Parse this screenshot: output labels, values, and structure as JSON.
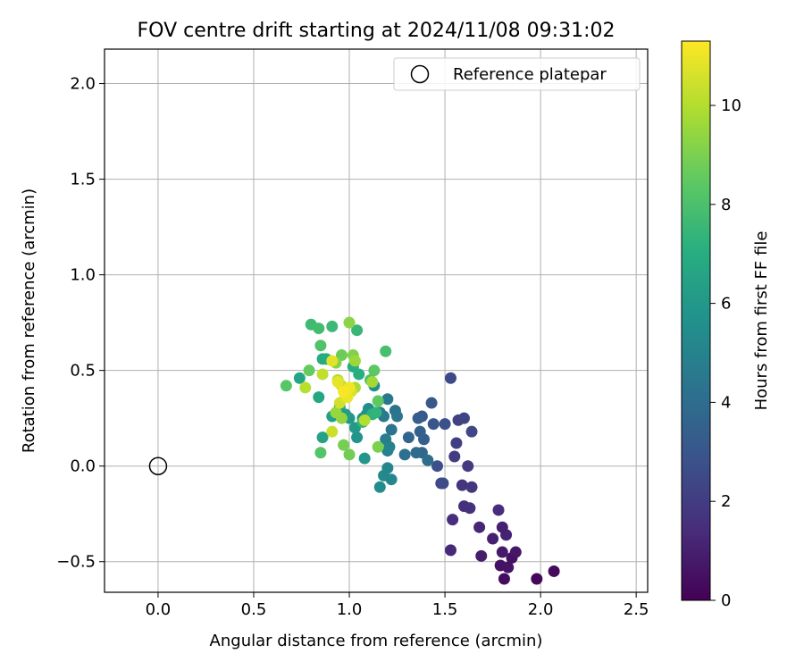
{
  "chart_data": {
    "type": "scatter",
    "title": "FOV centre drift starting at 2024/11/08 09:31:02",
    "xlabel": "Angular distance from reference (arcmin)",
    "ylabel": "Rotation from reference (arcmin)",
    "xlim": [
      -0.28,
      2.56
    ],
    "ylim": [
      -0.66,
      2.18
    ],
    "xticks": [
      0.0,
      0.5,
      1.0,
      1.5,
      2.0,
      2.5
    ],
    "xtick_labels": [
      "0.0",
      "0.5",
      "1.0",
      "1.5",
      "2.0",
      "2.5"
    ],
    "yticks": [
      -0.5,
      0.0,
      0.5,
      1.0,
      1.5,
      2.0
    ],
    "ytick_labels": [
      "−0.5",
      "0.0",
      "0.5",
      "1.0",
      "1.5",
      "2.0"
    ],
    "grid": true,
    "legend": {
      "placement": "top-right",
      "entries": [
        "Reference platepar"
      ]
    },
    "reference": {
      "x": 0.0,
      "y": 0.0,
      "label": "Reference platepar"
    },
    "colorbar": {
      "label": "Hours from first FF file",
      "colormap": "viridis",
      "range": [
        0,
        11.3
      ],
      "ticks": [
        0,
        2,
        4,
        6,
        8,
        10
      ],
      "tick_labels": [
        "0",
        "2",
        "4",
        "6",
        "8",
        "10"
      ]
    },
    "points": [
      {
        "x": 1.98,
        "y": -0.59,
        "h": 0.2
      },
      {
        "x": 2.07,
        "y": -0.55,
        "h": 0.3
      },
      {
        "x": 1.81,
        "y": -0.59,
        "h": 0.4
      },
      {
        "x": 1.79,
        "y": -0.52,
        "h": 0.5
      },
      {
        "x": 1.83,
        "y": -0.53,
        "h": 0.6
      },
      {
        "x": 1.85,
        "y": -0.48,
        "h": 0.5
      },
      {
        "x": 1.87,
        "y": -0.45,
        "h": 0.7
      },
      {
        "x": 1.8,
        "y": -0.45,
        "h": 0.8
      },
      {
        "x": 1.69,
        "y": -0.47,
        "h": 0.9
      },
      {
        "x": 1.75,
        "y": -0.38,
        "h": 1.0
      },
      {
        "x": 1.82,
        "y": -0.36,
        "h": 1.1
      },
      {
        "x": 1.8,
        "y": -0.32,
        "h": 1.0
      },
      {
        "x": 1.68,
        "y": -0.32,
        "h": 1.2
      },
      {
        "x": 1.53,
        "y": -0.44,
        "h": 1.3
      },
      {
        "x": 1.54,
        "y": -0.28,
        "h": 1.4
      },
      {
        "x": 1.6,
        "y": -0.21,
        "h": 1.5
      },
      {
        "x": 1.63,
        "y": -0.22,
        "h": 1.6
      },
      {
        "x": 1.78,
        "y": -0.23,
        "h": 1.4
      },
      {
        "x": 1.59,
        "y": -0.1,
        "h": 1.7
      },
      {
        "x": 1.64,
        "y": -0.11,
        "h": 1.8
      },
      {
        "x": 1.62,
        "y": 0.0,
        "h": 1.9
      },
      {
        "x": 1.55,
        "y": 0.05,
        "h": 2.0
      },
      {
        "x": 1.56,
        "y": 0.12,
        "h": 2.1
      },
      {
        "x": 1.57,
        "y": 0.24,
        "h": 2.2
      },
      {
        "x": 1.6,
        "y": 0.25,
        "h": 2.3
      },
      {
        "x": 1.64,
        "y": 0.18,
        "h": 2.4
      },
      {
        "x": 1.53,
        "y": 0.46,
        "h": 2.5
      },
      {
        "x": 1.48,
        "y": -0.09,
        "h": 2.4
      },
      {
        "x": 1.49,
        "y": -0.09,
        "h": 2.6
      },
      {
        "x": 1.46,
        "y": 0.0,
        "h": 2.7
      },
      {
        "x": 1.5,
        "y": 0.22,
        "h": 2.8
      },
      {
        "x": 1.44,
        "y": 0.22,
        "h": 3.0
      },
      {
        "x": 1.43,
        "y": 0.33,
        "h": 3.1
      },
      {
        "x": 1.38,
        "y": 0.26,
        "h": 3.2
      },
      {
        "x": 1.36,
        "y": 0.25,
        "h": 3.3
      },
      {
        "x": 1.39,
        "y": 0.14,
        "h": 3.4
      },
      {
        "x": 1.37,
        "y": 0.18,
        "h": 3.5
      },
      {
        "x": 1.31,
        "y": 0.15,
        "h": 3.6
      },
      {
        "x": 1.38,
        "y": 0.07,
        "h": 3.7
      },
      {
        "x": 1.35,
        "y": 0.07,
        "h": 3.9
      },
      {
        "x": 1.41,
        "y": 0.03,
        "h": 4.0
      },
      {
        "x": 1.29,
        "y": 0.06,
        "h": 4.1
      },
      {
        "x": 1.24,
        "y": 0.29,
        "h": 4.2
      },
      {
        "x": 1.22,
        "y": 0.19,
        "h": 4.3
      },
      {
        "x": 1.25,
        "y": 0.26,
        "h": 4.4
      },
      {
        "x": 1.2,
        "y": 0.35,
        "h": 4.5
      },
      {
        "x": 1.18,
        "y": 0.26,
        "h": 4.6
      },
      {
        "x": 1.16,
        "y": 0.28,
        "h": 4.7
      },
      {
        "x": 1.19,
        "y": 0.14,
        "h": 4.8
      },
      {
        "x": 1.2,
        "y": 0.08,
        "h": 4.9
      },
      {
        "x": 1.21,
        "y": 0.1,
        "h": 5.0
      },
      {
        "x": 1.2,
        "y": -0.01,
        "h": 5.1
      },
      {
        "x": 1.22,
        "y": -0.07,
        "h": 5.2
      },
      {
        "x": 1.18,
        "y": -0.05,
        "h": 5.3
      },
      {
        "x": 1.16,
        "y": -0.11,
        "h": 5.4
      },
      {
        "x": 1.13,
        "y": 0.42,
        "h": 5.5
      },
      {
        "x": 1.1,
        "y": 0.3,
        "h": 5.5
      },
      {
        "x": 1.07,
        "y": 0.25,
        "h": 5.6
      },
      {
        "x": 1.09,
        "y": 0.27,
        "h": 5.7
      },
      {
        "x": 1.04,
        "y": 0.15,
        "h": 5.8
      },
      {
        "x": 1.08,
        "y": 0.04,
        "h": 5.9
      },
      {
        "x": 1.0,
        "y": 0.25,
        "h": 6.0
      },
      {
        "x": 1.03,
        "y": 0.2,
        "h": 6.1
      },
      {
        "x": 0.98,
        "y": 0.27,
        "h": 6.2
      },
      {
        "x": 0.95,
        "y": 0.31,
        "h": 6.3
      },
      {
        "x": 0.91,
        "y": 0.26,
        "h": 6.4
      },
      {
        "x": 0.86,
        "y": 0.15,
        "h": 6.5
      },
      {
        "x": 0.74,
        "y": 0.46,
        "h": 6.6
      },
      {
        "x": 0.84,
        "y": 0.36,
        "h": 6.7
      },
      {
        "x": 0.88,
        "y": 0.56,
        "h": 6.8
      },
      {
        "x": 0.86,
        "y": 0.56,
        "h": 6.9
      },
      {
        "x": 1.02,
        "y": 0.52,
        "h": 7.0
      },
      {
        "x": 1.05,
        "y": 0.48,
        "h": 7.1
      },
      {
        "x": 1.12,
        "y": 0.27,
        "h": 7.2
      },
      {
        "x": 1.14,
        "y": 0.28,
        "h": 7.3
      },
      {
        "x": 1.07,
        "y": 0.23,
        "h": 7.4
      },
      {
        "x": 1.04,
        "y": 0.71,
        "h": 7.5
      },
      {
        "x": 0.91,
        "y": 0.73,
        "h": 7.6
      },
      {
        "x": 0.8,
        "y": 0.74,
        "h": 7.7
      },
      {
        "x": 0.84,
        "y": 0.72,
        "h": 7.8
      },
      {
        "x": 1.19,
        "y": 0.6,
        "h": 7.9
      },
      {
        "x": 1.11,
        "y": 0.45,
        "h": 8.0
      },
      {
        "x": 0.85,
        "y": 0.63,
        "h": 8.1
      },
      {
        "x": 0.85,
        "y": 0.07,
        "h": 8.2
      },
      {
        "x": 0.67,
        "y": 0.42,
        "h": 8.3
      },
      {
        "x": 1.13,
        "y": 0.5,
        "h": 8.4
      },
      {
        "x": 1.15,
        "y": 0.34,
        "h": 8.5
      },
      {
        "x": 0.79,
        "y": 0.5,
        "h": 8.6
      },
      {
        "x": 0.96,
        "y": 0.58,
        "h": 8.7
      },
      {
        "x": 1.0,
        "y": 0.06,
        "h": 8.8
      },
      {
        "x": 0.97,
        "y": 0.11,
        "h": 8.9
      },
      {
        "x": 1.15,
        "y": 0.1,
        "h": 9.0
      },
      {
        "x": 1.02,
        "y": 0.58,
        "h": 9.1
      },
      {
        "x": 0.93,
        "y": 0.54,
        "h": 9.2
      },
      {
        "x": 1.0,
        "y": 0.75,
        "h": 9.3
      },
      {
        "x": 0.96,
        "y": 0.25,
        "h": 9.4
      },
      {
        "x": 0.93,
        "y": 0.28,
        "h": 9.5
      },
      {
        "x": 1.03,
        "y": 0.55,
        "h": 9.6
      },
      {
        "x": 1.12,
        "y": 0.44,
        "h": 9.7
      },
      {
        "x": 1.03,
        "y": 0.41,
        "h": 9.8
      },
      {
        "x": 0.94,
        "y": 0.45,
        "h": 9.9
      },
      {
        "x": 1.08,
        "y": 0.24,
        "h": 10.0
      },
      {
        "x": 0.77,
        "y": 0.41,
        "h": 10.1
      },
      {
        "x": 0.86,
        "y": 0.48,
        "h": 10.2
      },
      {
        "x": 0.96,
        "y": 0.42,
        "h": 10.3
      },
      {
        "x": 0.91,
        "y": 0.18,
        "h": 10.4
      },
      {
        "x": 0.95,
        "y": 0.33,
        "h": 10.5
      },
      {
        "x": 1.01,
        "y": 0.39,
        "h": 10.6
      },
      {
        "x": 0.98,
        "y": 0.36,
        "h": 10.7
      },
      {
        "x": 0.91,
        "y": 0.55,
        "h": 10.8
      },
      {
        "x": 0.94,
        "y": 0.44,
        "h": 10.9
      },
      {
        "x": 0.99,
        "y": 0.36,
        "h": 11.0
      },
      {
        "x": 1.0,
        "y": 0.41,
        "h": 11.1
      },
      {
        "x": 0.97,
        "y": 0.39,
        "h": 11.2
      }
    ]
  }
}
